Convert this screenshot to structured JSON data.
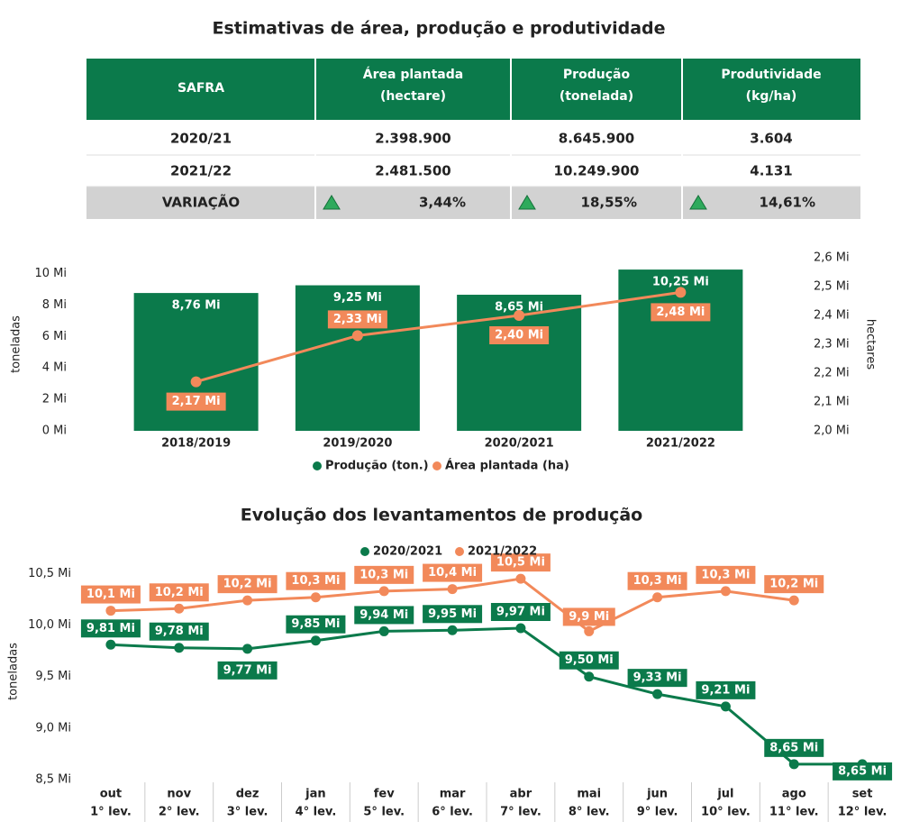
{
  "title": "Estimativas de área, produção e produtividade",
  "table": {
    "header": [
      [
        "SAFRA"
      ],
      [
        "Área plantada",
        "(hectare)"
      ],
      [
        "Produção",
        "(tonelada)"
      ],
      [
        "Produtividade",
        "(kg/ha)"
      ]
    ],
    "rows": [
      [
        "2020/21",
        "2.398.900",
        "8.645.900",
        "3.604"
      ],
      [
        "2021/22",
        "2.481.500",
        "10.249.900",
        "4.131"
      ],
      [
        "VARIAÇÃO",
        "3,44%",
        "18,55%",
        "14,61%"
      ]
    ]
  },
  "chart_data": [
    {
      "type": "bar",
      "categories": [
        "2018/2019",
        "2019/2020",
        "2020/2021",
        "2021/2022"
      ],
      "ylabel": "toneladas",
      "y2label": "hectares",
      "ylim": [
        0,
        11000000
      ],
      "yticks": [
        {
          "value": 0,
          "label": "0 Mi"
        },
        {
          "value": 2000000,
          "label": "2 Mi"
        },
        {
          "value": 4000000,
          "label": "4 Mi"
        },
        {
          "value": 6000000,
          "label": "6 Mi"
        },
        {
          "value": 8000000,
          "label": "8 Mi"
        },
        {
          "value": 10000000,
          "label": "10 Mi"
        }
      ],
      "y2lim": [
        2000000,
        2600000
      ],
      "y2ticks": [
        {
          "value": 2000000,
          "label": "2,0 Mi"
        },
        {
          "value": 2100000,
          "label": "2,1 Mi"
        },
        {
          "value": 2200000,
          "label": "2,2 Mi"
        },
        {
          "value": 2300000,
          "label": "2,3 Mi"
        },
        {
          "value": 2400000,
          "label": "2,4 Mi"
        },
        {
          "value": 2500000,
          "label": "2,5 Mi"
        },
        {
          "value": 2600000,
          "label": "2,6 Mi"
        }
      ],
      "legend": "bottom",
      "series": [
        {
          "name": "Produção (ton.)",
          "color": "#0b7a4b",
          "type": "bar",
          "values": [
            8760000,
            9250000,
            8650000,
            10250000
          ],
          "value_labels": [
            "8,76 Mi",
            "9,25 Mi",
            "8,65 Mi",
            "10,25 Mi"
          ]
        },
        {
          "name": "Área plantada (ha)",
          "color": "#f2895a",
          "type": "line",
          "axis": "y2",
          "values": [
            2170000,
            2330000,
            2400000,
            2480000
          ],
          "value_labels": [
            "2,17 Mi",
            "2,33 Mi",
            "2,40 Mi",
            "2,48 Mi"
          ]
        }
      ]
    },
    {
      "type": "line",
      "title": "Evolução dos levantamentos de produção",
      "categories": [
        "out",
        "nov",
        "dez",
        "jan",
        "fev",
        "mar",
        "abr",
        "mai",
        "jun",
        "jul",
        "ago",
        "set"
      ],
      "sublabels": [
        "1° lev.",
        "2° lev.",
        "3° lev.",
        "4° lev.",
        "5° lev.",
        "6° lev.",
        "7° lev.",
        "8° lev.",
        "9° lev.",
        "10° lev.",
        "11° lev.",
        "12° lev."
      ],
      "ylabel": "toneladas",
      "ylim": [
        8500000,
        10600000
      ],
      "yticks": [
        {
          "value": 8500000,
          "label": "8,5 Mi"
        },
        {
          "value": 9000000,
          "label": "9,0 Mi"
        },
        {
          "value": 9500000,
          "label": "9,5 Mi"
        },
        {
          "value": 10000000,
          "label": "10,0 Mi"
        },
        {
          "value": 10500000,
          "label": "10,5 Mi"
        }
      ],
      "legend": "top",
      "series": [
        {
          "name": "2020/2021",
          "color": "#0b7a4b",
          "values": [
            9810000,
            9780000,
            9770000,
            9850000,
            9940000,
            9950000,
            9970000,
            9500000,
            9330000,
            9210000,
            8650000,
            8650000
          ],
          "value_labels": [
            "9,81 Mi",
            "9,78 Mi",
            "9,77 Mi",
            "9,85 Mi",
            "9,94 Mi",
            "9,95 Mi",
            "9,97 Mi",
            "9,50 Mi",
            "9,33 Mi",
            "9,21 Mi",
            "8,65 Mi",
            "8,65 Mi"
          ]
        },
        {
          "name": "2021/2022",
          "color": "#f2895a",
          "values": [
            10140000,
            10160000,
            10240000,
            10270000,
            10330000,
            10350000,
            10450000,
            9940000,
            10270000,
            10330000,
            10240000,
            null
          ],
          "value_labels": [
            "10,1 Mi",
            "10,2 Mi",
            "10,2 Mi",
            "10,3 Mi",
            "10,3 Mi",
            "10,4 Mi",
            "10,5 Mi",
            "9,9 Mi",
            "10,3 Mi",
            "10,3 Mi",
            "10,2 Mi",
            null
          ]
        }
      ]
    }
  ]
}
